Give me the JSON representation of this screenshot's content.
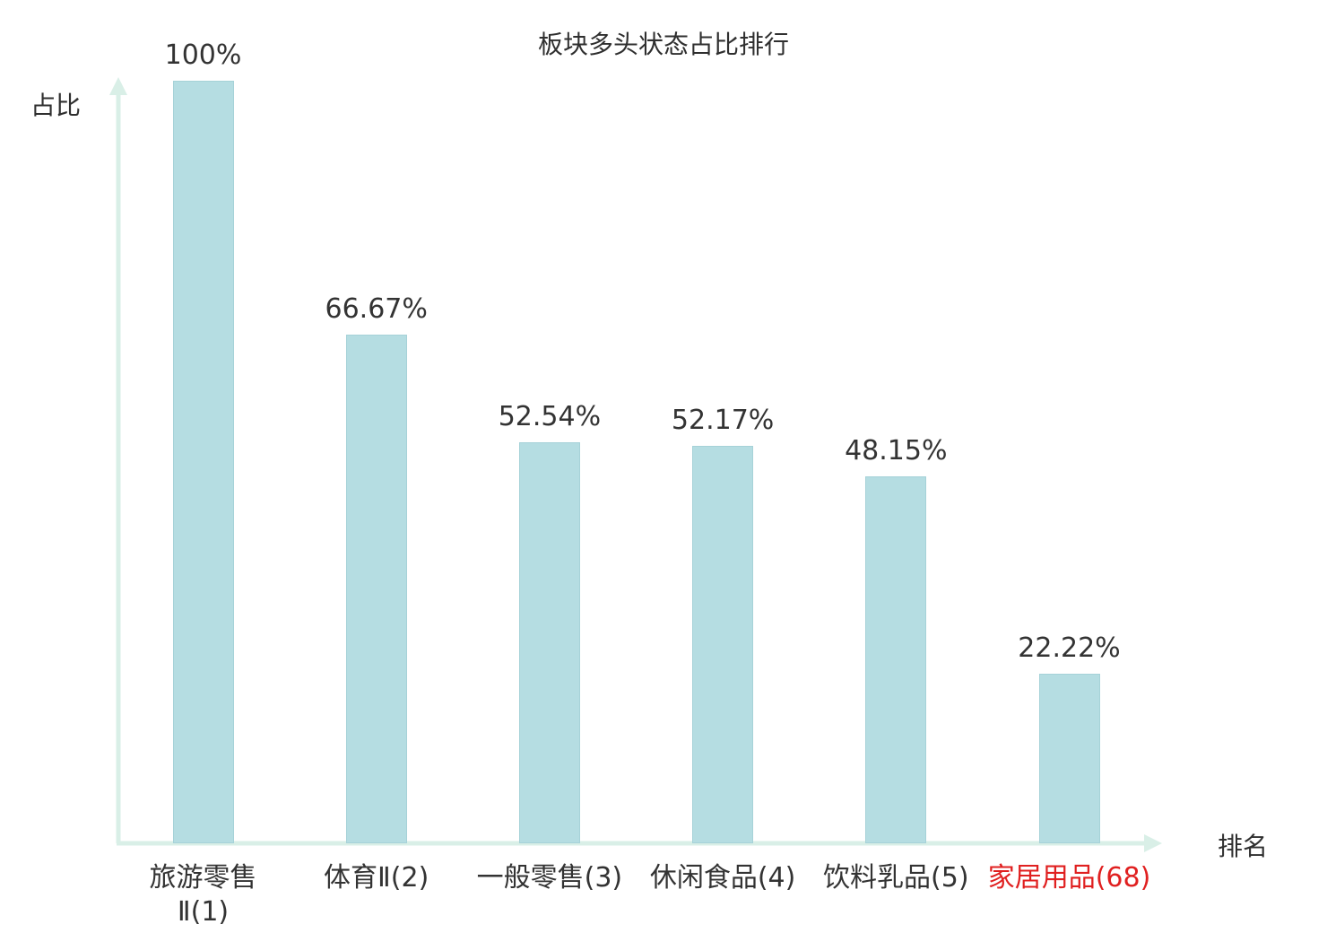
{
  "title": "板块多头状态占比排行",
  "axes": {
    "y_label": "占比",
    "x_label": "排名"
  },
  "colors": {
    "bar_fill": "#b5dde2",
    "bar_border": "#a6d2d8",
    "axis": "#d9efe7",
    "text": "#333333",
    "highlight": "#e02020"
  },
  "chart_data": {
    "type": "bar",
    "title": "板块多头状态占比排行",
    "xlabel": "排名",
    "ylabel": "占比",
    "ylim": [
      0,
      100
    ],
    "grid": false,
    "legend": "none",
    "categories": [
      "旅游零售Ⅱ(1)",
      "体育Ⅱ(2)",
      "一般零售(3)",
      "休闲食品(4)",
      "饮料乳品(5)",
      "家居用品(68)"
    ],
    "category_lines": [
      [
        "旅游零售",
        "Ⅱ(1)"
      ],
      [
        "体育Ⅱ(2)"
      ],
      [
        "一般零售(3)"
      ],
      [
        "休闲食品(4)"
      ],
      [
        "饮料乳品(5)"
      ],
      [
        "家居用品(68)"
      ]
    ],
    "values": [
      100,
      66.67,
      52.54,
      52.17,
      48.15,
      22.22
    ],
    "value_labels": [
      "100%",
      "66.67%",
      "52.54%",
      "52.17%",
      "48.15%",
      "22.22%"
    ],
    "highlight_index": 5
  }
}
